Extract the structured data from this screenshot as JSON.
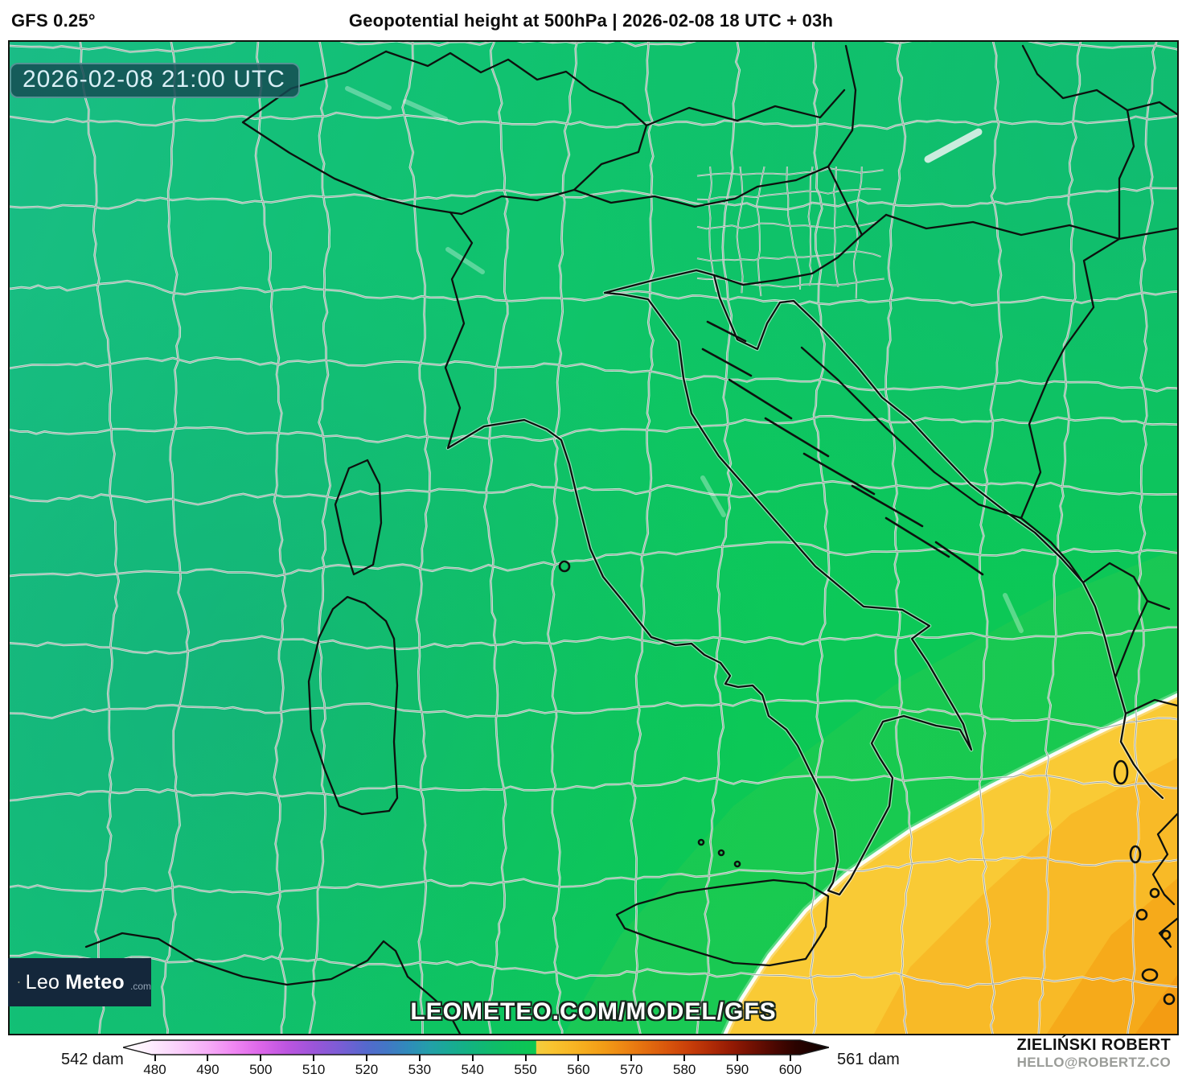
{
  "header": {
    "model_label": "GFS 0.25°",
    "title": "Geopotential height at 500hPa | 2026-02-08 18 UTC + 03h"
  },
  "map": {
    "timestamp_badge": "2026-02-08 21:00 UTC",
    "watermark": "LEOMETEO.COM/MODEL/GFS",
    "logo": {
      "prefix": "Leo",
      "suffix": "Meteo",
      "tld": ".com"
    }
  },
  "legend": {
    "unit": "dam",
    "min_label": "542 dam",
    "max_label": "561 dam",
    "ticks": [
      480,
      490,
      500,
      510,
      520,
      530,
      540,
      550,
      560,
      570,
      580,
      590,
      600
    ],
    "domain": [
      474,
      607.3
    ],
    "stops": [
      [
        474,
        "#ffffff"
      ],
      [
        479,
        "#fdeefe"
      ],
      [
        484,
        "#fad2fb"
      ],
      [
        490,
        "#f6adf7"
      ],
      [
        495,
        "#ef86f2"
      ],
      [
        500,
        "#dc66e9"
      ],
      [
        505,
        "#bc55e0"
      ],
      [
        510,
        "#9b55d9"
      ],
      [
        515,
        "#7a5dd5"
      ],
      [
        520,
        "#5469cd"
      ],
      [
        524,
        "#4178c5"
      ],
      [
        528,
        "#2f8cba"
      ],
      [
        532,
        "#23a0a8"
      ],
      [
        536,
        "#18ab93"
      ],
      [
        540,
        "#12b47e"
      ],
      [
        544,
        "#0fbc6a"
      ],
      [
        548,
        "#0dc35b"
      ],
      [
        552,
        "#0bc851"
      ],
      [
        552.01,
        "#f2cd3f"
      ],
      [
        555,
        "#f9c430"
      ],
      [
        558,
        "#f8b927"
      ],
      [
        561,
        "#f6ad1e"
      ],
      [
        565,
        "#f29b16"
      ],
      [
        569,
        "#ec8413"
      ],
      [
        573,
        "#e36c0f"
      ],
      [
        577,
        "#d8540c"
      ],
      [
        581,
        "#c83e09"
      ],
      [
        585,
        "#b02b06"
      ],
      [
        589,
        "#931a04"
      ],
      [
        593,
        "#701002"
      ],
      [
        597,
        "#4c0701"
      ],
      [
        601,
        "#2b0300"
      ],
      [
        607,
        "#0e0100"
      ]
    ]
  },
  "credits": {
    "author": "ZIELIŃSKI ROBERT",
    "contact": "HELLO@ROBERTZ.CO"
  },
  "map_colors": {
    "base_stops": [
      [
        "0%",
        "#1abc86"
      ],
      [
        "30%",
        "#12c175"
      ],
      [
        "62%",
        "#0ec564"
      ],
      [
        "100%",
        "#0cc757"
      ]
    ],
    "west_patch": "rgba(23,170,128,0.60)",
    "topright_patch": "rgba(21,176,138,0.50)",
    "south_bright": "rgba(9,206,68,0.40)",
    "band_548_overlay": "rgba(150,220,50,0.10)",
    "band1": "#f9ca35",
    "band2": "#f8ba27",
    "band3": "#f6aa1a",
    "band4": "#f49c12",
    "contour": "#ffffff",
    "border_country": "#0c110e",
    "coast_casing": "rgba(255,255,255,0.55)",
    "border_admin": "#97a29b",
    "admin_casing": "rgba(255,255,255,0.80)",
    "lake": "rgba(235,245,242,0.85)"
  },
  "chart_data": {
    "type": "heatmap",
    "title": "Geopotential height at 500hPa",
    "unit": "dam",
    "field_range_shown": [
      542,
      561
    ],
    "legend_ticks": [
      480,
      490,
      500,
      510,
      520,
      530,
      540,
      550,
      560,
      570,
      580,
      590,
      600
    ],
    "regions": [
      {
        "area": "most of domain (Alps, Italy, Adriatic)",
        "value_dam": "546-552",
        "color": "green"
      },
      {
        "area": "west of Sardinia",
        "value_dam": "~546",
        "color": "teal-green"
      },
      {
        "area": "far southeast (Ionian Sea, Greece)",
        "value_dam": "552-560",
        "color": "yellow-orange"
      }
    ]
  }
}
